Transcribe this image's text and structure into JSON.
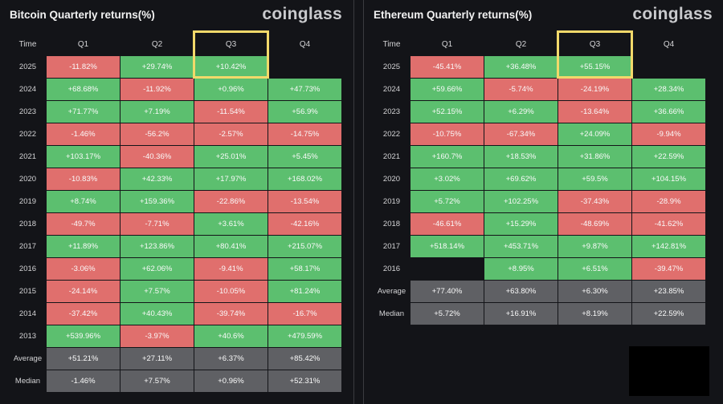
{
  "chart_data": [
    {
      "type": "table",
      "title": "Bitcoin Quarterly returns(%)",
      "brand": "coinglass",
      "columns": [
        "Time",
        "Q1",
        "Q2",
        "Q3",
        "Q4"
      ],
      "highlight_column": "Q3",
      "rows": [
        {
          "label": "2025",
          "values": [
            "-11.82%",
            "+29.74%",
            "+10.42%",
            ""
          ]
        },
        {
          "label": "2024",
          "values": [
            "+68.68%",
            "-11.92%",
            "+0.96%",
            "+47.73%"
          ]
        },
        {
          "label": "2023",
          "values": [
            "+71.77%",
            "+7.19%",
            "-11.54%",
            "+56.9%"
          ]
        },
        {
          "label": "2022",
          "values": [
            "-1.46%",
            "-56.2%",
            "-2.57%",
            "-14.75%"
          ]
        },
        {
          "label": "2021",
          "values": [
            "+103.17%",
            "-40.36%",
            "+25.01%",
            "+5.45%"
          ]
        },
        {
          "label": "2020",
          "values": [
            "-10.83%",
            "+42.33%",
            "+17.97%",
            "+168.02%"
          ]
        },
        {
          "label": "2019",
          "values": [
            "+8.74%",
            "+159.36%",
            "-22.86%",
            "-13.54%"
          ]
        },
        {
          "label": "2018",
          "values": [
            "-49.7%",
            "-7.71%",
            "+3.61%",
            "-42.16%"
          ]
        },
        {
          "label": "2017",
          "values": [
            "+11.89%",
            "+123.86%",
            "+80.41%",
            "+215.07%"
          ]
        },
        {
          "label": "2016",
          "values": [
            "-3.06%",
            "+62.06%",
            "-9.41%",
            "+58.17%"
          ]
        },
        {
          "label": "2015",
          "values": [
            "-24.14%",
            "+7.57%",
            "-10.05%",
            "+81.24%"
          ]
        },
        {
          "label": "2014",
          "values": [
            "-37.42%",
            "+40.43%",
            "-39.74%",
            "-16.7%"
          ]
        },
        {
          "label": "2013",
          "values": [
            "+539.96%",
            "-3.97%",
            "+40.6%",
            "+479.59%"
          ]
        }
      ],
      "summary": [
        {
          "label": "Average",
          "values": [
            "+51.21%",
            "+27.11%",
            "+6.37%",
            "+85.42%"
          ]
        },
        {
          "label": "Median",
          "values": [
            "-1.46%",
            "+7.57%",
            "+0.96%",
            "+52.31%"
          ]
        }
      ]
    },
    {
      "type": "table",
      "title": "Ethereum Quarterly returns(%)",
      "brand": "coinglass",
      "columns": [
        "Time",
        "Q1",
        "Q2",
        "Q3",
        "Q4"
      ],
      "highlight_column": "Q3",
      "rows": [
        {
          "label": "2025",
          "values": [
            "-45.41%",
            "+36.48%",
            "+55.15%",
            ""
          ]
        },
        {
          "label": "2024",
          "values": [
            "+59.66%",
            "-5.74%",
            "-24.19%",
            "+28.34%"
          ]
        },
        {
          "label": "2023",
          "values": [
            "+52.15%",
            "+6.29%",
            "-13.64%",
            "+36.66%"
          ]
        },
        {
          "label": "2022",
          "values": [
            "-10.75%",
            "-67.34%",
            "+24.09%",
            "-9.94%"
          ]
        },
        {
          "label": "2021",
          "values": [
            "+160.7%",
            "+18.53%",
            "+31.86%",
            "+22.59%"
          ]
        },
        {
          "label": "2020",
          "values": [
            "+3.02%",
            "+69.62%",
            "+59.5%",
            "+104.15%"
          ]
        },
        {
          "label": "2019",
          "values": [
            "+5.72%",
            "+102.25%",
            "-37.43%",
            "-28.9%"
          ]
        },
        {
          "label": "2018",
          "values": [
            "-46.61%",
            "+15.29%",
            "-48.69%",
            "-41.62%"
          ]
        },
        {
          "label": "2017",
          "values": [
            "+518.14%",
            "+453.71%",
            "+9.87%",
            "+142.81%"
          ]
        },
        {
          "label": "2016",
          "values": [
            "",
            "+8.95%",
            "+6.51%",
            "-39.47%"
          ]
        }
      ],
      "summary": [
        {
          "label": "Average",
          "values": [
            "+77.40%",
            "+63.80%",
            "+6.30%",
            "+23.85%"
          ]
        },
        {
          "label": "Median",
          "values": [
            "+5.72%",
            "+16.91%",
            "+8.19%",
            "+22.59%"
          ]
        }
      ]
    }
  ],
  "colors": {
    "positive": "#5cbf6f",
    "negative": "#e06f6d",
    "summary": "#5f6064",
    "highlight": "#f2d96a"
  }
}
